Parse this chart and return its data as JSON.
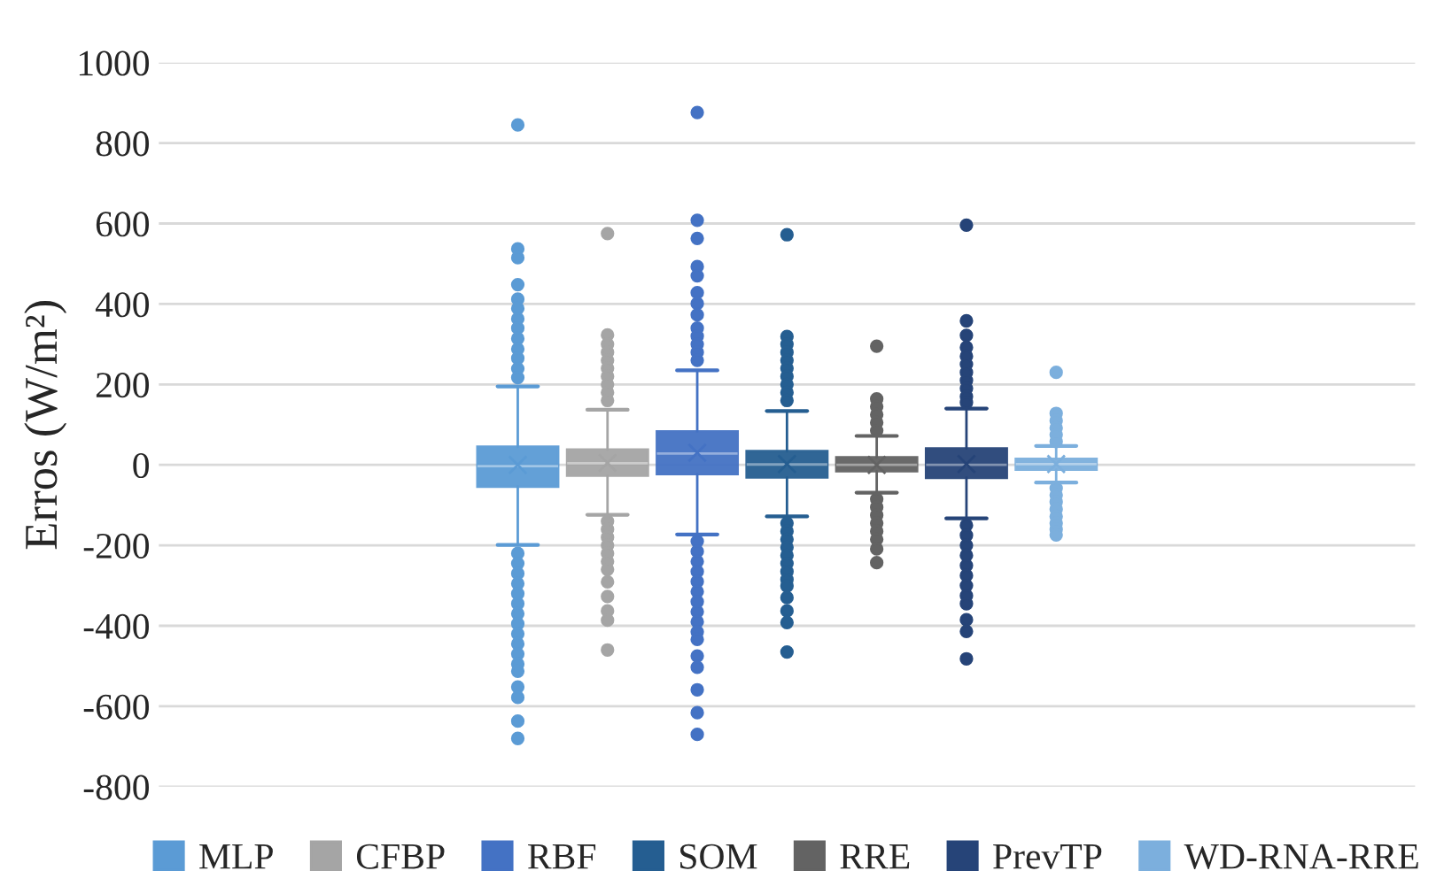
{
  "chart_data": {
    "type": "box",
    "ylabel": "Erros (W/m²)",
    "categories": [
      null
    ],
    "ylim": [
      -800,
      1000
    ],
    "yticks": [
      -800,
      -600,
      -400,
      -200,
      0,
      200,
      400,
      600,
      800,
      1000
    ],
    "grid": "y",
    "legend": "bottom",
    "marker": "circle",
    "series": [
      {
        "name": "MLP",
        "color": "#5b9bd5",
        "boxes": [
          {
            "low": -199,
            "q1": -54,
            "median": -3,
            "q3": 45,
            "high": 195,
            "mean": 0,
            "outliers": [
              845,
              537,
              515,
              448,
              412,
              389,
              363,
              340,
              314,
              288,
              265,
              239,
              217,
              -220,
              -245,
              -270,
              -295,
              -320,
              -345,
              -370,
              -395,
              -420,
              -445,
              -470,
              -495,
              -513,
              -552,
              -578,
              -637,
              -680
            ]
          }
        ]
      },
      {
        "name": "CFBP",
        "color": "#a5a5a5",
        "boxes": [
          {
            "low": -124,
            "q1": -27,
            "median": 4,
            "q3": 38,
            "high": 137,
            "mean": 5,
            "outliers": [
              575,
              323,
              300,
              280,
              260,
              240,
              220,
              200,
              180,
              160,
              -140,
              -160,
              -180,
              -200,
              -220,
              -240,
              -260,
              -291,
              -327,
              -363,
              -386,
              -460
            ]
          }
        ]
      },
      {
        "name": "RBF",
        "color": "#4472c4",
        "boxes": [
          {
            "low": -173,
            "q1": -23,
            "median": 28,
            "q3": 83,
            "high": 235,
            "mean": 30,
            "outliers": [
              876,
              608,
              563,
              493,
              470,
              428,
              401,
              373,
              340,
              320,
              300,
              280,
              260,
              -190,
              -215,
              -240,
              -265,
              -290,
              -315,
              -340,
              -365,
              -390,
              -415,
              -434,
              -475,
              -503,
              -559,
              -616,
              -670
            ]
          }
        ]
      },
      {
        "name": "SOM",
        "color": "#255e91",
        "boxes": [
          {
            "low": -128,
            "q1": -31,
            "median": 1,
            "q3": 34,
            "high": 134,
            "mean": 2,
            "outliers": [
              572,
              319,
              300,
              280,
              260,
              240,
              220,
              200,
              180,
              160,
              -145,
              -165,
              -185,
              -205,
              -225,
              -245,
              -265,
              -285,
              -301,
              -330,
              -363,
              -392,
              -465
            ]
          }
        ]
      },
      {
        "name": "RRE",
        "color": "#636363",
        "boxes": [
          {
            "low": -69,
            "q1": -16,
            "median": 0,
            "q3": 19,
            "high": 72,
            "mean": 0,
            "outliers": [
              295,
              164,
              145,
              125,
              105,
              85,
              -85,
              -105,
              -125,
              -145,
              -165,
              -185,
              -209,
              -243
            ]
          }
        ]
      },
      {
        "name": "PrevTP",
        "color": "#264478",
        "boxes": [
          {
            "low": -133,
            "q1": -32,
            "median": 0,
            "q3": 41,
            "high": 140,
            "mean": 2,
            "outliers": [
              596,
              358,
              322,
              292,
              270,
              250,
              230,
              210,
              190,
              170,
              155,
              -150,
              -175,
              -200,
              -225,
              -250,
              -275,
              -300,
              -325,
              -345,
              -385,
              -414,
              -482
            ]
          }
        ]
      },
      {
        "name": "WD-RNA-RRE",
        "color": "#7cafdd",
        "boxes": [
          {
            "low": -44,
            "q1": -12,
            "median": 2,
            "q3": 15,
            "high": 47,
            "mean": 2,
            "outliers": [
              230,
              128,
              110,
              92,
              75,
              58,
              -58,
              -75,
              -92,
              -110,
              -128,
              -145,
              -160,
              -174
            ]
          }
        ]
      }
    ]
  }
}
